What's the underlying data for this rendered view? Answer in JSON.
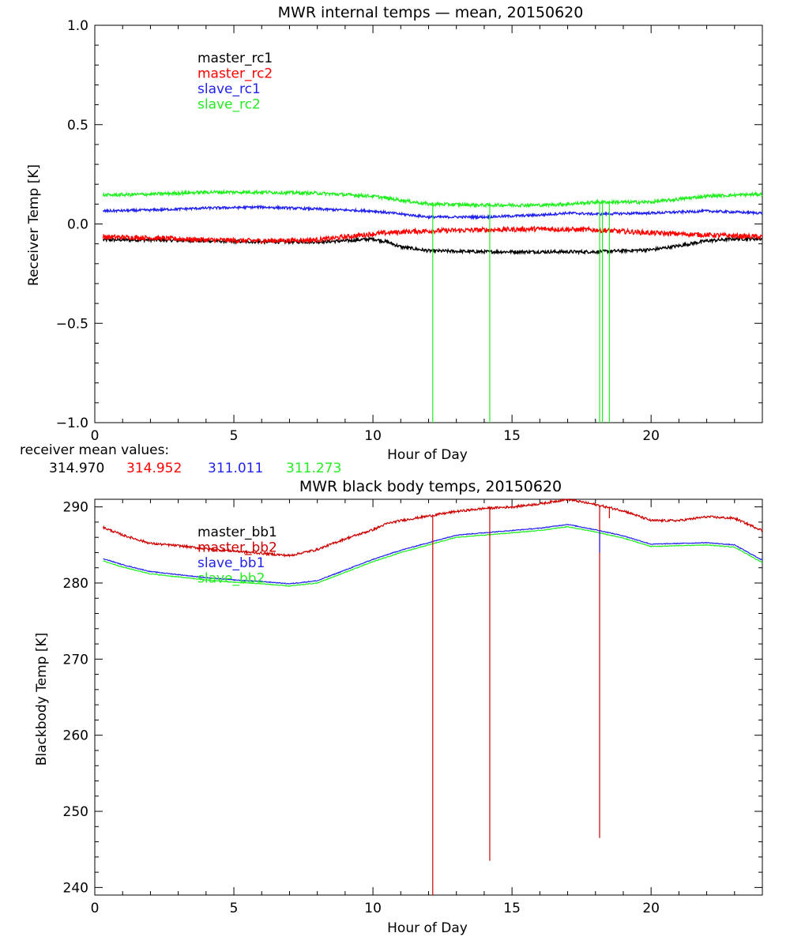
{
  "colors": {
    "black": "#000000",
    "red": "#ff0000",
    "blue": "#2222ee",
    "green": "#22ee22",
    "darkred": "#cc0000"
  },
  "mean_values": {
    "label": "receiver mean values:",
    "values": [
      "314.970",
      "314.952",
      "311.011",
      "311.273"
    ]
  },
  "chart_data": [
    {
      "type": "line",
      "title": "MWR internal temps — mean, 20150620",
      "xlabel": "Hour of Day",
      "ylabel": "Receiver Temp [K]",
      "xlim": [
        0,
        24
      ],
      "ylim": [
        -1.0,
        1.0
      ],
      "x_ticks": [
        "0",
        "5",
        "10",
        "15",
        "20"
      ],
      "y_ticks": [
        "−1.0",
        "−0.5",
        "0.0",
        "0.5",
        "1.0"
      ],
      "legend_position": "top-left",
      "series": [
        {
          "name": "master_rc1",
          "color": "#000000",
          "noise": 0.008,
          "x": [
            0.3,
            2,
            4,
            6,
            8,
            9,
            10,
            10.5,
            11,
            12,
            14,
            16,
            18,
            20,
            21,
            22,
            23,
            24
          ],
          "y": [
            -0.08,
            -0.08,
            -0.085,
            -0.09,
            -0.09,
            -0.085,
            -0.075,
            -0.09,
            -0.115,
            -0.135,
            -0.14,
            -0.14,
            -0.14,
            -0.13,
            -0.11,
            -0.085,
            -0.075,
            -0.075
          ]
        },
        {
          "name": "master_rc2",
          "color": "#ff0000",
          "noise": 0.012,
          "x": [
            0.3,
            2,
            4,
            6,
            8,
            10,
            11,
            12,
            14,
            16,
            18,
            20,
            22,
            24
          ],
          "y": [
            -0.065,
            -0.07,
            -0.08,
            -0.085,
            -0.08,
            -0.05,
            -0.04,
            -0.035,
            -0.03,
            -0.025,
            -0.03,
            -0.045,
            -0.055,
            -0.065
          ]
        },
        {
          "name": "slave_rc1",
          "color": "#2222ee",
          "noise": 0.006,
          "x": [
            0.3,
            2,
            4,
            6,
            8,
            10,
            11,
            12,
            14,
            16,
            17,
            18,
            20,
            22,
            24
          ],
          "y": [
            0.065,
            0.07,
            0.08,
            0.085,
            0.075,
            0.065,
            0.05,
            0.035,
            0.035,
            0.045,
            0.055,
            0.05,
            0.055,
            0.065,
            0.055
          ]
        },
        {
          "name": "slave_rc2",
          "color": "#22ee22",
          "noise": 0.008,
          "x": [
            0.3,
            2,
            4,
            6,
            8,
            10,
            11,
            12,
            14,
            16,
            17,
            18,
            20,
            22,
            24
          ],
          "y": [
            0.145,
            0.15,
            0.16,
            0.16,
            0.155,
            0.14,
            0.12,
            0.1,
            0.095,
            0.095,
            0.1,
            0.11,
            0.11,
            0.14,
            0.15
          ]
        }
      ],
      "spikes": [
        {
          "series": "slave_rc2",
          "x": 12.15,
          "y": -1.0
        },
        {
          "series": "slave_rc2",
          "x": 14.2,
          "y": -1.0
        },
        {
          "series": "slave_rc2",
          "x": 18.15,
          "y": -1.0
        },
        {
          "series": "slave_rc2",
          "x": 18.25,
          "y": -1.0
        },
        {
          "series": "slave_rc2",
          "x": 18.5,
          "y": -1.0
        }
      ]
    },
    {
      "type": "line",
      "title": "MWR black body temps, 20150620",
      "xlabel": "Hour of Day",
      "ylabel": "Blackbody Temp [K]",
      "xlim": [
        0,
        24
      ],
      "ylim": [
        239,
        291
      ],
      "x_ticks": [
        "0",
        "5",
        "10",
        "15",
        "20"
      ],
      "y_ticks": [
        "240",
        "250",
        "260",
        "270",
        "280",
        "290"
      ],
      "legend_position": "top-left",
      "series": [
        {
          "name": "master_bb1",
          "color": "#000000",
          "noise": 0,
          "x": [],
          "y": []
        },
        {
          "name": "master_bb2",
          "color": "#cc0000",
          "noise": 0.15,
          "x": [
            0.3,
            1,
            2,
            3,
            4,
            5,
            6,
            7,
            8,
            9,
            10,
            10.5,
            11,
            12,
            13,
            14,
            15,
            16,
            17,
            18,
            19,
            20,
            21,
            22,
            23,
            24
          ],
          "y": [
            287.3,
            286.3,
            285.2,
            284.9,
            284.5,
            284.2,
            283.9,
            283.6,
            284.4,
            285.8,
            287.0,
            287.8,
            288.2,
            288.8,
            289.4,
            289.8,
            290.0,
            290.4,
            291.0,
            290.3,
            289.5,
            288.2,
            288.2,
            288.7,
            288.5,
            286.9
          ]
        },
        {
          "name": "slave_bb1",
          "color": "#2222ee",
          "noise": 0.05,
          "x": [
            0.3,
            1,
            2,
            3,
            4,
            5,
            6,
            7,
            8,
            9,
            10,
            11,
            12,
            13,
            14,
            15,
            16,
            17,
            18,
            19,
            20,
            21,
            22,
            23,
            24
          ],
          "y": [
            283.2,
            282.4,
            281.5,
            281.1,
            280.7,
            280.4,
            280.2,
            279.9,
            280.3,
            281.7,
            283.1,
            284.3,
            285.3,
            286.3,
            286.6,
            286.9,
            287.2,
            287.7,
            287.0,
            286.2,
            285.1,
            285.2,
            285.3,
            285.0,
            283.0
          ]
        },
        {
          "name": "slave_bb2",
          "color": "#22ee22",
          "noise": 0.05,
          "x": [
            0.3,
            1,
            2,
            3,
            4,
            5,
            6,
            7,
            8,
            9,
            10,
            11,
            12,
            13,
            14,
            15,
            16,
            17,
            18,
            19,
            20,
            21,
            22,
            23,
            24
          ],
          "y": [
            282.9,
            282.1,
            281.2,
            280.8,
            280.4,
            280.1,
            279.9,
            279.6,
            280.0,
            281.4,
            282.8,
            284.0,
            285.0,
            286.0,
            286.3,
            286.6,
            286.9,
            287.4,
            286.7,
            285.9,
            284.8,
            284.9,
            285.0,
            284.7,
            282.7
          ]
        }
      ],
      "spikes": [
        {
          "series": "master_bb2",
          "x": 12.15,
          "y": 239
        },
        {
          "series": "master_bb2",
          "x": 14.2,
          "y": 243.5
        },
        {
          "series": "master_bb2",
          "x": 18.15,
          "y": 246.5
        },
        {
          "series": "master_bb2",
          "x": 18.5,
          "y": 288.5
        },
        {
          "series": "slave_bb1",
          "x": 18.15,
          "y": 284.0
        }
      ]
    }
  ]
}
